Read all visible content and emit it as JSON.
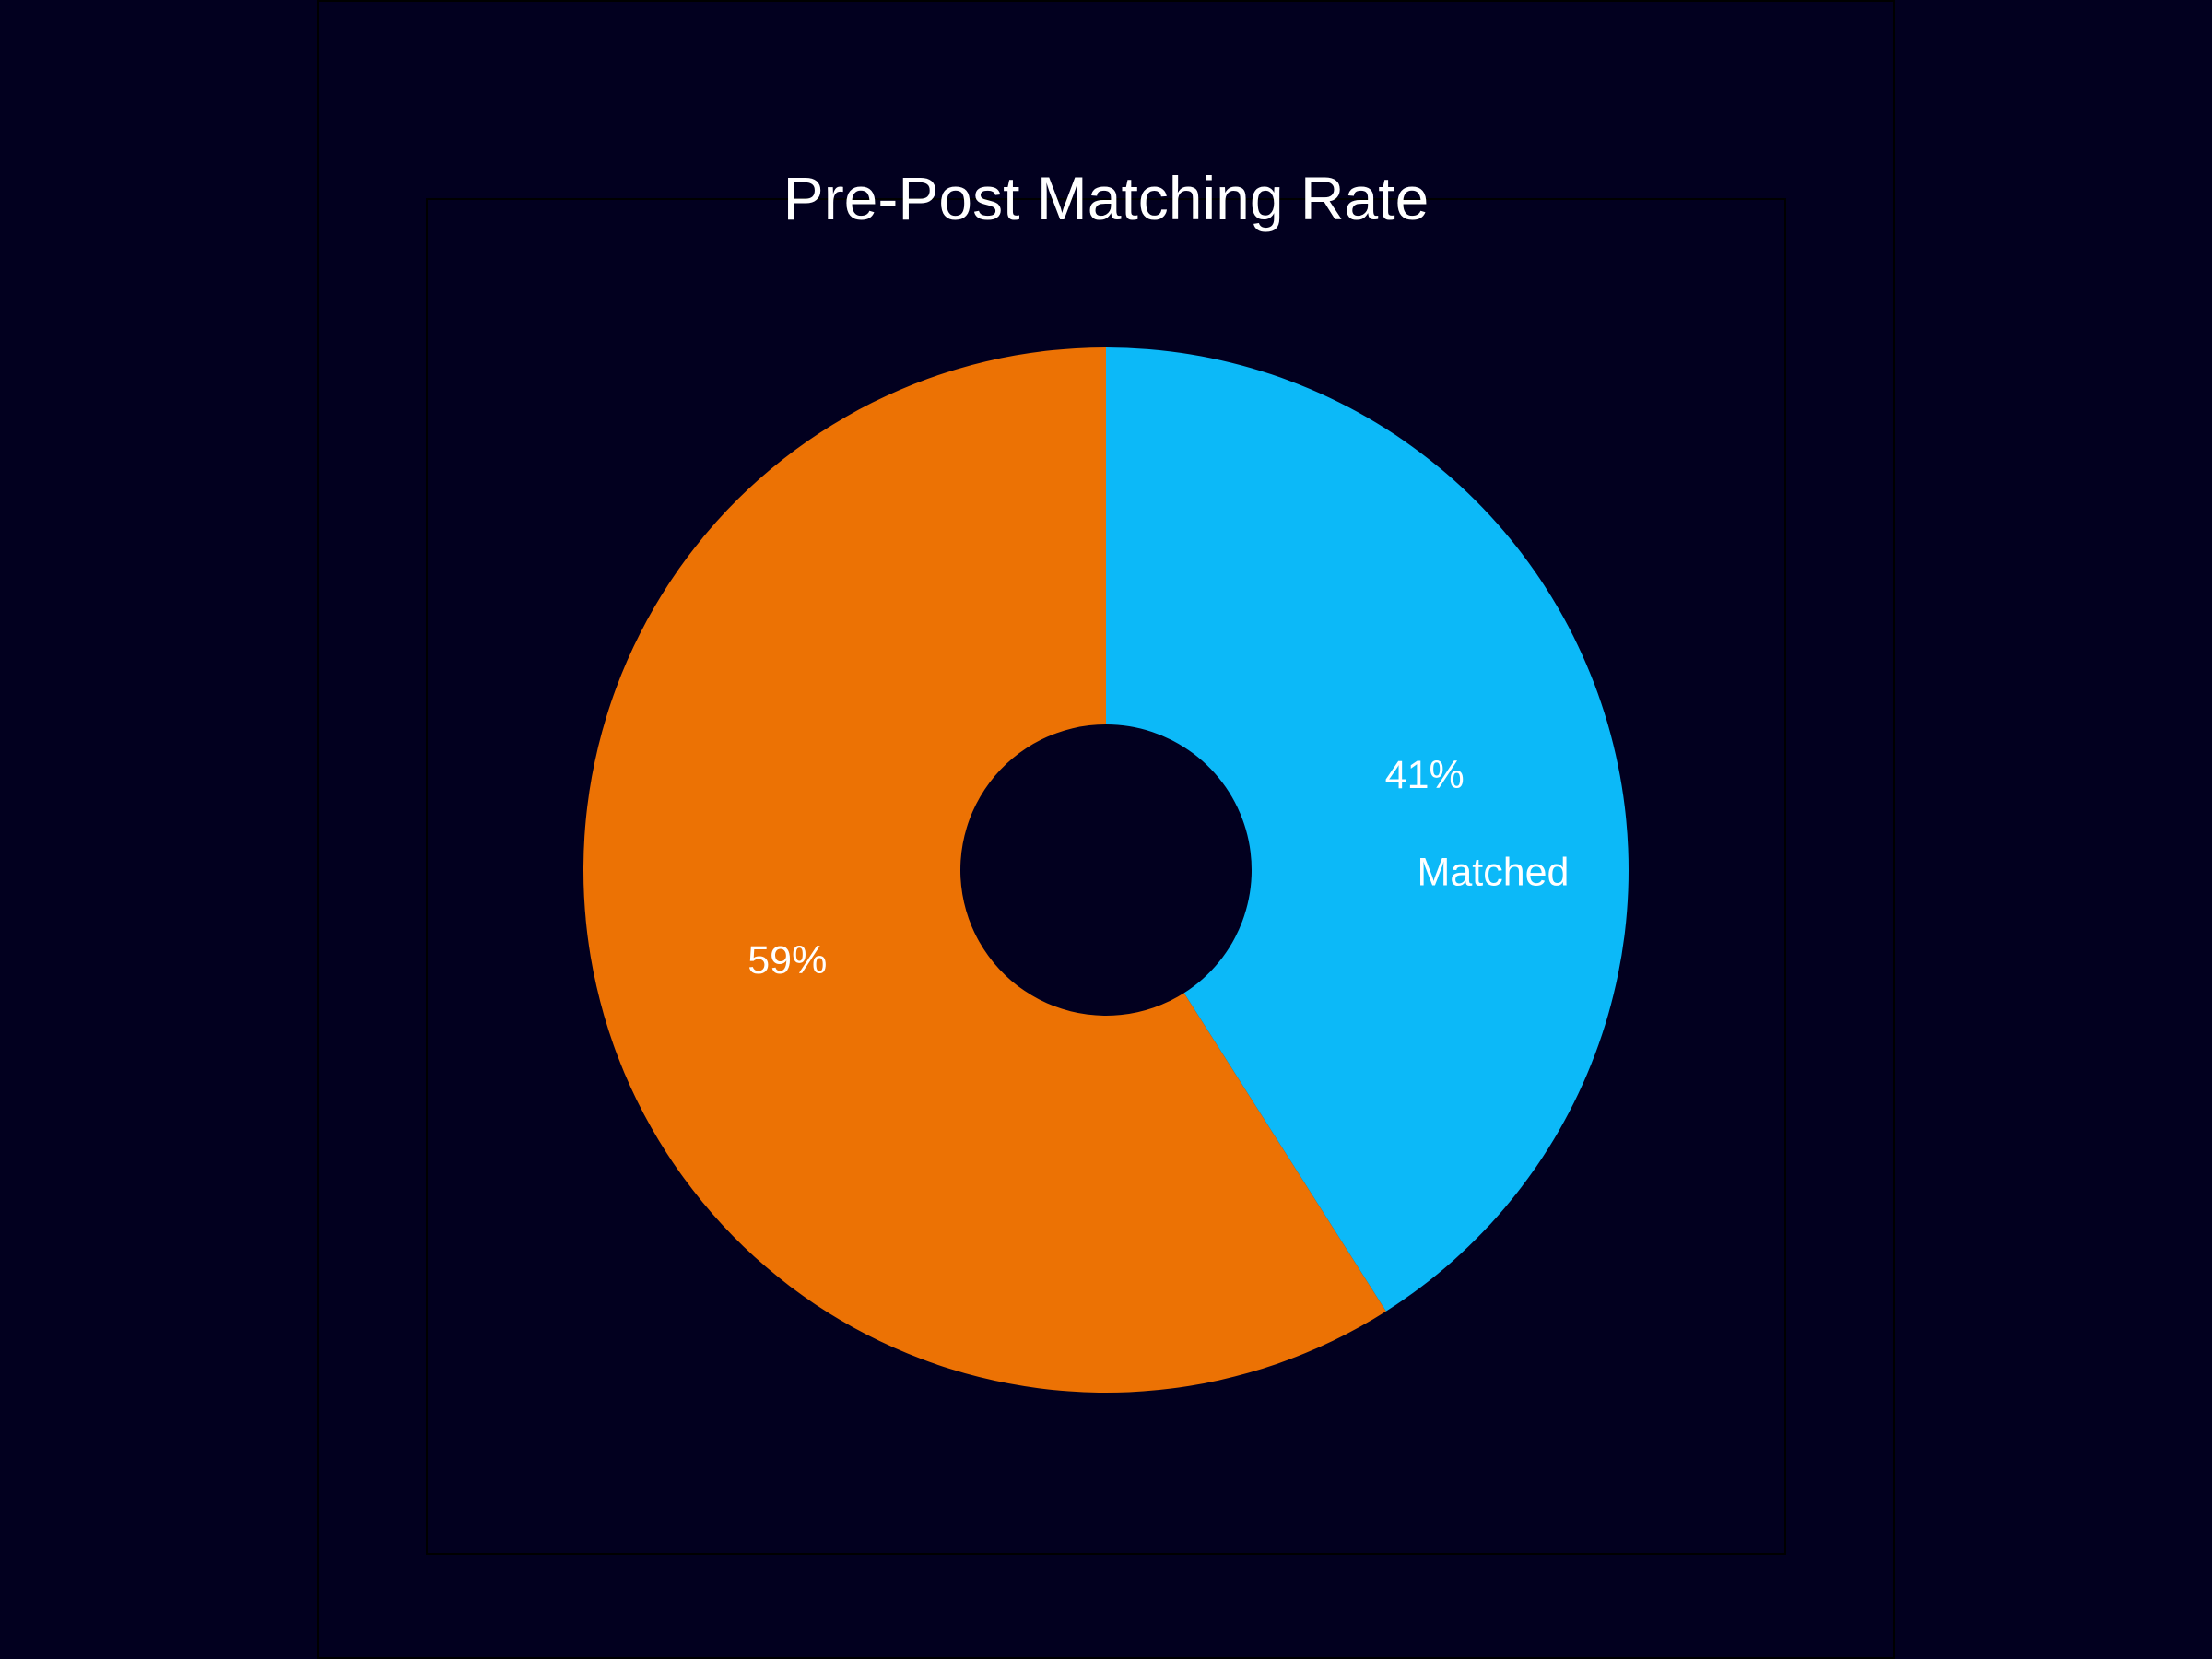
{
  "chart_data": {
    "type": "pie",
    "variant": "donut",
    "title": "Pre-Post Matching Rate",
    "start_angle": "12 o'clock",
    "direction": "clockwise",
    "slices": [
      {
        "label": "Matched",
        "value": 41,
        "percent_label": "41%",
        "color": "#0cb9f8"
      },
      {
        "label": "",
        "value": 59,
        "percent_label": "59%",
        "color": "#ec7204"
      }
    ],
    "legend": "none",
    "background_color": "#02001f",
    "text_color": "#ffffff"
  }
}
